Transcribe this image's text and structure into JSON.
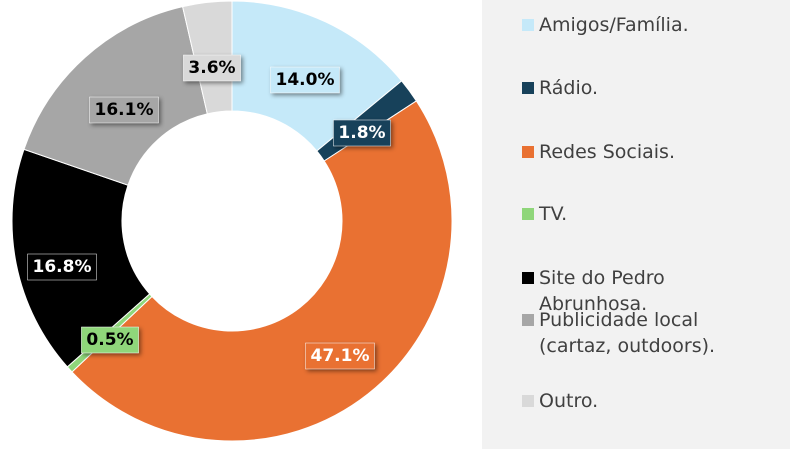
{
  "chart_data": {
    "type": "donut",
    "series": [
      {
        "name": "Amigos/Família.",
        "color": "#c5e9f9",
        "values": [
          14.0
        ],
        "value_labels": [
          "14.0%"
        ]
      },
      {
        "name": "Rádio.",
        "color": "#17415a",
        "values": [
          1.8
        ],
        "value_labels": [
          "1.8%"
        ]
      },
      {
        "name": "Redes Sociais.",
        "color": "#e97132",
        "values": [
          47.1
        ],
        "value_labels": [
          "47.1%"
        ]
      },
      {
        "name": "TV.",
        "color": "#8fd67a",
        "values": [
          0.5
        ],
        "value_labels": [
          "0.5%"
        ]
      },
      {
        "name": "Site do Pedro Abrunhosa.",
        "color": "#000000",
        "values": [
          16.8
        ],
        "value_labels": [
          "16.8%"
        ]
      },
      {
        "name": "Publicidade local (cartaz, outdoors).",
        "color": "#a6a6a6",
        "values": [
          16.1
        ],
        "value_labels": [
          "16.1%"
        ]
      },
      {
        "name": "Outro.",
        "color": "#d9d9d9",
        "values": [
          3.6
        ],
        "value_labels": [
          "3.6%"
        ]
      }
    ]
  }
}
